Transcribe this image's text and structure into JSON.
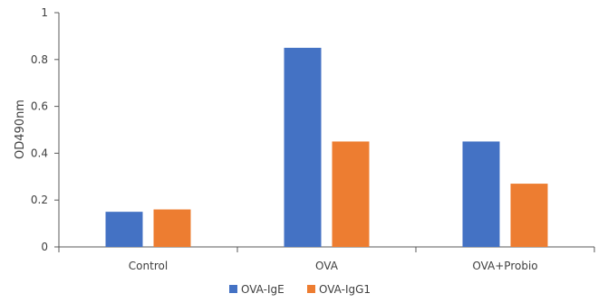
{
  "chart_data": {
    "type": "bar",
    "categories": [
      "Control",
      "OVA",
      "OVA+Probio"
    ],
    "series": [
      {
        "name": "OVA-IgE",
        "values": [
          0.15,
          0.85,
          0.45
        ],
        "color": "#4472C4"
      },
      {
        "name": "OVA-IgG1",
        "values": [
          0.16,
          0.45,
          0.27
        ],
        "color": "#ED7D31"
      }
    ],
    "ylabel": "OD490nm",
    "xlabel": "",
    "ylim": [
      0,
      1
    ],
    "yticks": [
      "0",
      "0.2",
      "0.4",
      "0.6",
      "0.8",
      "1"
    ],
    "grid": false,
    "legend_position": "bottom"
  }
}
